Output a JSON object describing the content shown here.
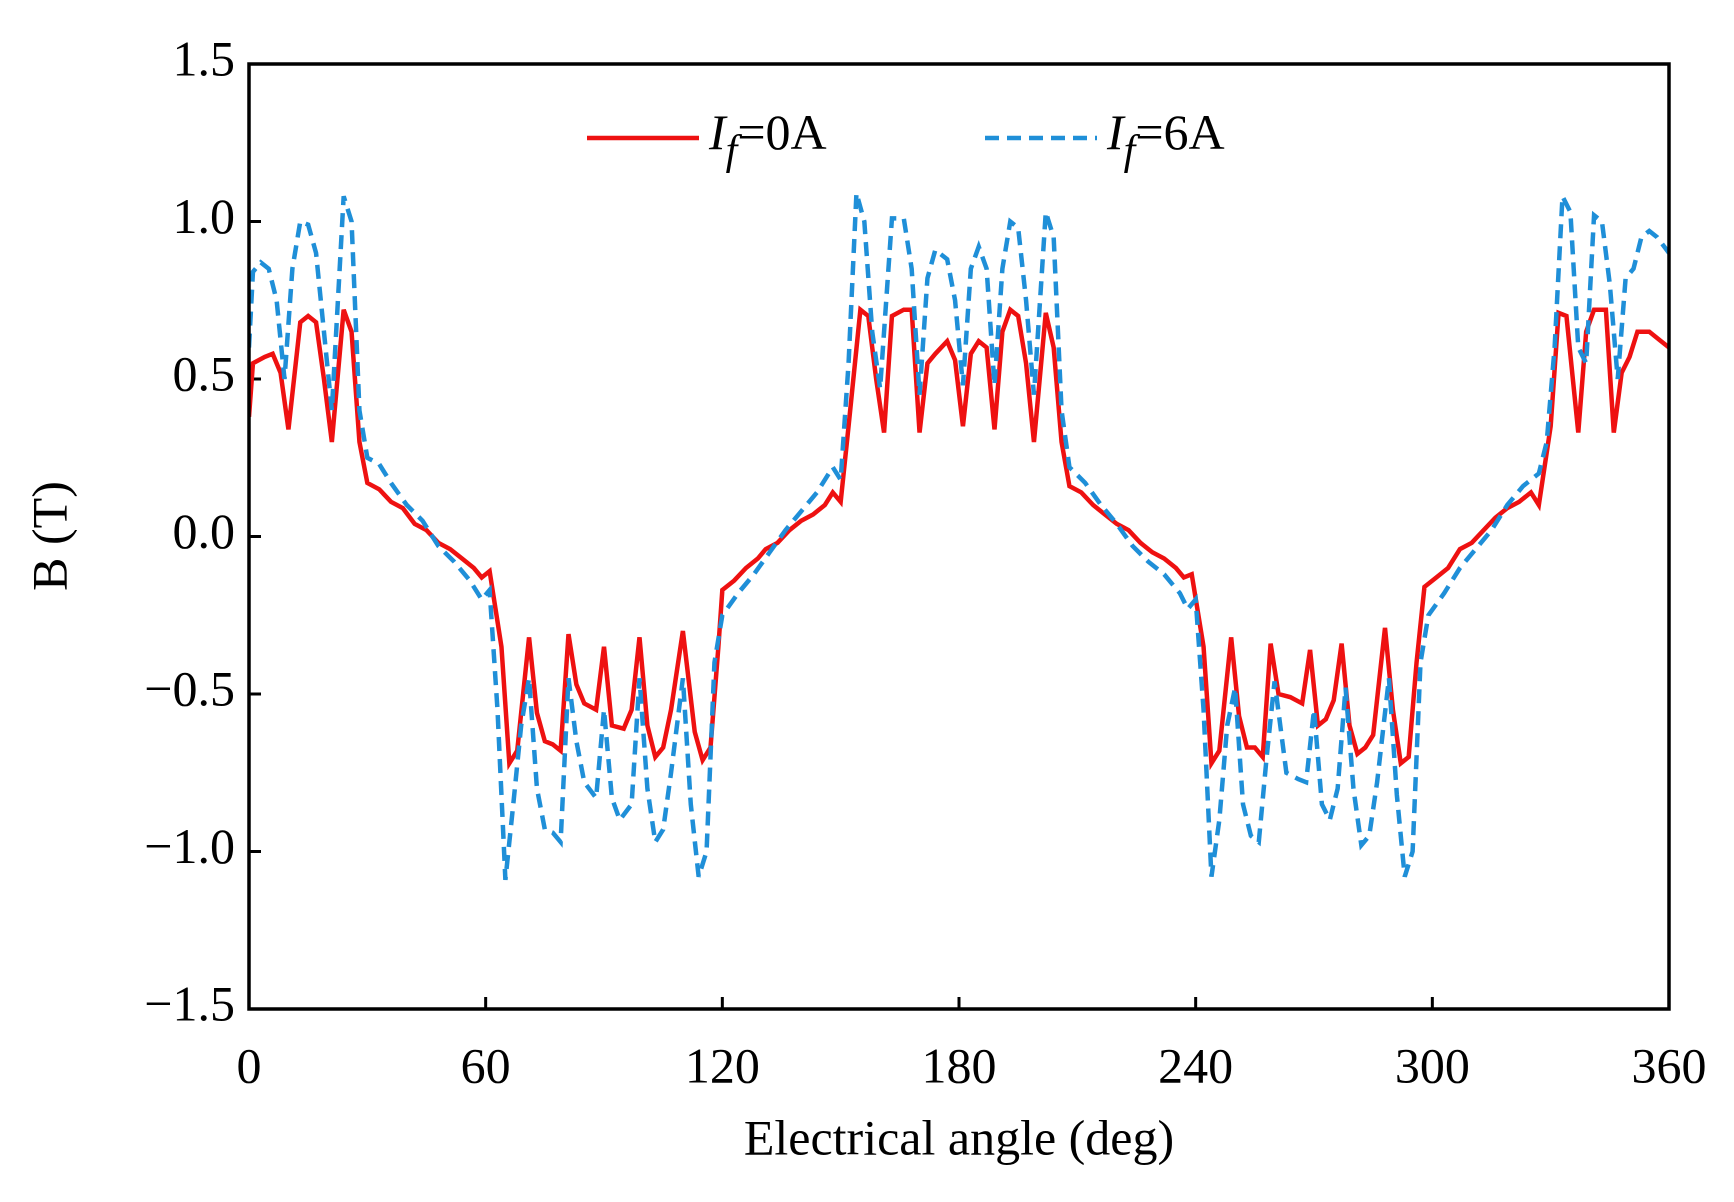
{
  "chart_data": {
    "type": "line",
    "xlabel": "Electrical angle (deg)",
    "ylabel": "B (T)",
    "xlim": [
      0,
      360
    ],
    "xticks": [
      0,
      60,
      120,
      180,
      240,
      300,
      360
    ],
    "ylim": [
      -1.5,
      1.5
    ],
    "yticks": [
      {
        "value": -1.5,
        "label": "−1.5"
      },
      {
        "value": -1.0,
        "label": "−1.0"
      },
      {
        "value": -0.5,
        "label": "−0.5"
      },
      {
        "value": 0,
        "label": "0.0"
      },
      {
        "value": 0.5,
        "label": "0.5"
      },
      {
        "value": 1.0,
        "label": "1.0"
      },
      {
        "value": 1.5,
        "label": "1.5"
      }
    ],
    "legend": "upper center",
    "series": [
      {
        "name": "If=0A",
        "color": "#ee1111",
        "dash": "solid",
        "x": [
          0,
          1,
          4,
          6,
          8,
          10,
          13,
          15,
          17,
          19,
          21,
          24,
          26,
          28,
          30,
          33,
          36,
          39,
          42,
          45,
          48,
          51,
          54,
          57,
          59,
          61,
          64,
          66,
          68,
          71,
          73,
          75,
          77,
          79,
          81,
          83,
          85,
          88,
          90,
          92,
          95,
          97,
          99,
          101,
          103,
          105,
          107,
          110,
          113,
          115,
          117,
          119,
          120,
          123,
          126,
          129,
          131,
          134,
          137,
          140,
          143,
          146,
          148,
          150,
          152,
          155,
          157,
          159,
          161,
          163,
          166,
          168,
          170,
          172,
          174,
          177,
          179,
          181,
          183,
          185,
          187,
          189,
          191,
          193,
          195,
          197,
          199,
          202,
          204,
          206,
          208,
          211,
          214,
          217,
          220,
          223,
          226,
          229,
          232,
          235,
          237,
          239,
          242,
          244,
          246,
          249,
          251,
          253,
          255,
          257,
          259,
          261,
          264,
          267,
          269,
          271,
          273,
          275,
          277,
          279,
          281,
          283,
          285,
          288,
          290,
          292,
          294,
          296,
          298,
          301,
          304,
          307,
          310,
          313,
          316,
          319,
          322,
          325,
          327,
          330,
          332,
          334,
          337,
          339,
          341,
          344,
          346,
          348,
          350,
          352,
          355,
          358,
          360
        ],
        "values": [
          0.38,
          0.55,
          0.57,
          0.58,
          0.52,
          0.34,
          0.68,
          0.7,
          0.68,
          0.5,
          0.3,
          0.72,
          0.65,
          0.3,
          0.17,
          0.15,
          0.11,
          0.09,
          0.04,
          0.02,
          -0.02,
          -0.04,
          -0.07,
          -0.1,
          -0.13,
          -0.11,
          -0.35,
          -0.72,
          -0.68,
          -0.32,
          -0.56,
          -0.65,
          -0.66,
          -0.68,
          -0.31,
          -0.47,
          -0.53,
          -0.55,
          -0.35,
          -0.6,
          -0.61,
          -0.55,
          -0.32,
          -0.6,
          -0.7,
          -0.67,
          -0.55,
          -0.3,
          -0.62,
          -0.71,
          -0.67,
          -0.35,
          -0.17,
          -0.14,
          -0.1,
          -0.07,
          -0.04,
          -0.02,
          0.02,
          0.05,
          0.07,
          0.1,
          0.14,
          0.11,
          0.35,
          0.72,
          0.7,
          0.5,
          0.33,
          0.7,
          0.72,
          0.72,
          0.33,
          0.55,
          0.58,
          0.62,
          0.56,
          0.35,
          0.58,
          0.62,
          0.6,
          0.34,
          0.65,
          0.72,
          0.7,
          0.55,
          0.3,
          0.71,
          0.6,
          0.3,
          0.16,
          0.14,
          0.1,
          0.07,
          0.04,
          0.02,
          -0.02,
          -0.05,
          -0.07,
          -0.1,
          -0.13,
          -0.12,
          -0.35,
          -0.72,
          -0.68,
          -0.32,
          -0.57,
          -0.67,
          -0.67,
          -0.7,
          -0.34,
          -0.5,
          -0.51,
          -0.53,
          -0.36,
          -0.6,
          -0.58,
          -0.52,
          -0.34,
          -0.6,
          -0.69,
          -0.67,
          -0.63,
          -0.29,
          -0.55,
          -0.72,
          -0.7,
          -0.4,
          -0.16,
          -0.13,
          -0.1,
          -0.04,
          -0.02,
          0.02,
          0.06,
          0.09,
          0.11,
          0.14,
          0.1,
          0.35,
          0.71,
          0.7,
          0.33,
          0.65,
          0.72,
          0.72,
          0.33,
          0.52,
          0.57,
          0.65,
          0.65,
          0.62,
          0.6
        ]
      },
      {
        "name": "If=6A",
        "color": "#1f8fd8",
        "dash": "dashed",
        "x": [
          0,
          1,
          3,
          5,
          7,
          9,
          11,
          13,
          15,
          17,
          19,
          21,
          24,
          26,
          28,
          30,
          33,
          36,
          40,
          44,
          48,
          52,
          56,
          59,
          61,
          63,
          65,
          67,
          69,
          71,
          73,
          75,
          77,
          79,
          81,
          83,
          85,
          88,
          90,
          92,
          94,
          97,
          99,
          101,
          103,
          105,
          107,
          110,
          112,
          114,
          116,
          118,
          120,
          124,
          128,
          132,
          136,
          140,
          144,
          148,
          150,
          152,
          154,
          156,
          158,
          160,
          163,
          166,
          168,
          170,
          172,
          174,
          177,
          179,
          181,
          183,
          185,
          187,
          189,
          191,
          193,
          195,
          197,
          199,
          202,
          204,
          206,
          208,
          212,
          216,
          220,
          224,
          228,
          232,
          236,
          238,
          240,
          242,
          244,
          246,
          248,
          250,
          252,
          254,
          256,
          258,
          260,
          263,
          266,
          268,
          270,
          272,
          274,
          276,
          278,
          280,
          282,
          284,
          286,
          289,
          291,
          293,
          295,
          297,
          299,
          303,
          307,
          311,
          315,
          319,
          323,
          327,
          329,
          331,
          333,
          335,
          337,
          339,
          341,
          343,
          345,
          347,
          349,
          351,
          353,
          355,
          357,
          360
        ],
        "values": [
          0.6,
          0.84,
          0.87,
          0.85,
          0.75,
          0.5,
          0.85,
          1.0,
          0.99,
          0.9,
          0.65,
          0.4,
          1.08,
          1.0,
          0.4,
          0.25,
          0.23,
          0.17,
          0.1,
          0.05,
          -0.03,
          -0.08,
          -0.14,
          -0.2,
          -0.17,
          -0.55,
          -1.09,
          -0.85,
          -0.6,
          -0.45,
          -0.8,
          -0.93,
          -0.94,
          -0.97,
          -0.45,
          -0.65,
          -0.78,
          -0.83,
          -0.55,
          -0.83,
          -0.9,
          -0.85,
          -0.45,
          -0.8,
          -0.97,
          -0.93,
          -0.75,
          -0.45,
          -0.85,
          -1.08,
          -1.0,
          -0.4,
          -0.25,
          -0.18,
          -0.12,
          -0.05,
          0.02,
          0.08,
          0.14,
          0.22,
          0.18,
          0.55,
          1.09,
          1.0,
          0.65,
          0.47,
          1.01,
          1.01,
          0.85,
          0.45,
          0.82,
          0.91,
          0.88,
          0.75,
          0.48,
          0.85,
          0.92,
          0.85,
          0.48,
          0.85,
          1.0,
          0.98,
          0.75,
          0.45,
          1.03,
          0.95,
          0.4,
          0.22,
          0.17,
          0.1,
          0.04,
          -0.03,
          -0.08,
          -0.12,
          -0.18,
          -0.23,
          -0.2,
          -0.55,
          -1.08,
          -0.9,
          -0.6,
          -0.48,
          -0.85,
          -0.95,
          -0.97,
          -0.7,
          -0.46,
          -0.75,
          -0.77,
          -0.78,
          -0.55,
          -0.85,
          -0.9,
          -0.8,
          -0.48,
          -0.8,
          -0.98,
          -0.95,
          -0.78,
          -0.45,
          -0.82,
          -1.08,
          -1.0,
          -0.4,
          -0.25,
          -0.18,
          -0.1,
          -0.04,
          0.02,
          0.1,
          0.16,
          0.2,
          0.3,
          0.6,
          1.08,
          1.03,
          0.6,
          0.55,
          1.02,
          1.0,
          0.8,
          0.5,
          0.82,
          0.85,
          0.95,
          0.97,
          0.95,
          0.9
        ]
      }
    ]
  }
}
